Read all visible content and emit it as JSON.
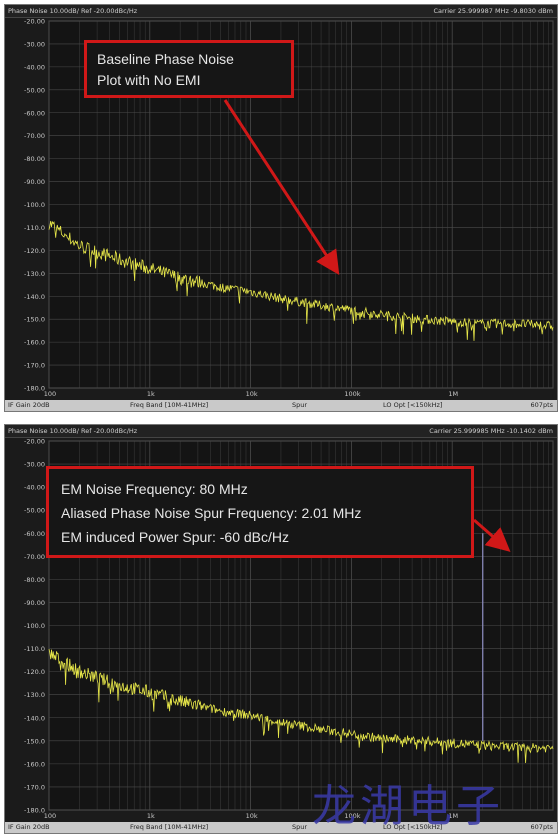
{
  "colors": {
    "trace": "#e8e84a",
    "spur": "#8f8fc4",
    "grid": "#4a4a4a",
    "annotation_border": "#d01818",
    "watermark": "#3a3aa8",
    "background": "#1b1b1b"
  },
  "top_panel": {
    "header_left": "Phase Noise 10.00dB/ Ref -20.00dBc/Hz",
    "header_right": "Carrier 25.999987 MHz   -9.8030 dBm",
    "footer": {
      "if_gain": "IF Gain 20dB",
      "freq_band": "Freq Band [10M-41MHz]",
      "spur": "Spur",
      "lo_opt": "LO Opt [<150kHz]",
      "points": "607pts"
    },
    "annotation": [
      "Baseline Phase Noise",
      "Plot with No EMI"
    ]
  },
  "bottom_panel": {
    "header_left": "Phase Noise 10.00dB/ Ref -20.00dBc/Hz",
    "header_right": "Carrier 25.999985 MHz   -10.1402 dBm",
    "footer": {
      "if_gain": "IF Gain 20dB",
      "freq_band": "Freq Band [10M-41MHz]",
      "spur": "Spur",
      "lo_opt": "LO Opt [<150kHz]",
      "points": "607pts"
    },
    "annotation": [
      "EM Noise Frequency: 80 MHz",
      "Aliased Phase Noise Spur Frequency: 2.01 MHz",
      "EM induced Power Spur: -60 dBc/Hz"
    ]
  },
  "watermark": "龙湖电子",
  "chart_data": [
    {
      "type": "line",
      "title": "",
      "xlabel": "",
      "ylabel": "",
      "x_scale": "log",
      "xlim": [
        100,
        10000000
      ],
      "ylim": [
        -180,
        -20
      ],
      "grid": true,
      "x_ticks": [
        "100",
        "1k",
        "10k",
        "100k",
        "1M"
      ],
      "y_ticks": [
        "-20.00",
        "-30.00",
        "-40.00",
        "-50.00",
        "-60.00",
        "-70.00",
        "-80.00",
        "-90.00",
        "-100.0",
        "-110.0",
        "-120.0",
        "-130.0",
        "-140.0",
        "-150.0",
        "-160.0",
        "-170.0",
        "-180.0"
      ],
      "series": [
        {
          "x": [
            100,
            200,
            500,
            1000,
            2000,
            5000,
            10000,
            20000,
            50000,
            100000,
            200000,
            500000,
            1000000,
            2000000,
            5000000,
            10000000
          ],
          "y": [
            -108,
            -118,
            -124,
            -128,
            -132,
            -136,
            -138,
            -141,
            -144,
            -146,
            -148,
            -150,
            -151,
            -152,
            -152,
            -153
          ]
        }
      ]
    },
    {
      "type": "line",
      "title": "",
      "xlabel": "",
      "ylabel": "",
      "x_scale": "log",
      "xlim": [
        100,
        10000000
      ],
      "ylim": [
        -180,
        -20
      ],
      "grid": true,
      "x_ticks": [
        "100",
        "1k",
        "10k",
        "100k",
        "1M"
      ],
      "y_ticks": [
        "-20.00",
        "-30.00",
        "-40.00",
        "-50.00",
        "-60.00",
        "-70.00",
        "-80.00",
        "-90.00",
        "-100.0",
        "-110.0",
        "-120.0",
        "-130.0",
        "-140.0",
        "-150.0",
        "-160.0",
        "-170.0",
        "-180.0"
      ],
      "series": [
        {
          "x": [
            100,
            200,
            500,
            1000,
            2000,
            5000,
            10000,
            20000,
            50000,
            100000,
            200000,
            500000,
            1000000,
            2000000,
            5000000,
            10000000
          ],
          "y": [
            -112,
            -120,
            -126,
            -129,
            -133,
            -137,
            -139,
            -142,
            -145,
            -147,
            -149,
            -150,
            -151,
            -152,
            -153,
            -153
          ]
        }
      ],
      "spur": {
        "x": 2010000,
        "y": -60
      }
    }
  ]
}
